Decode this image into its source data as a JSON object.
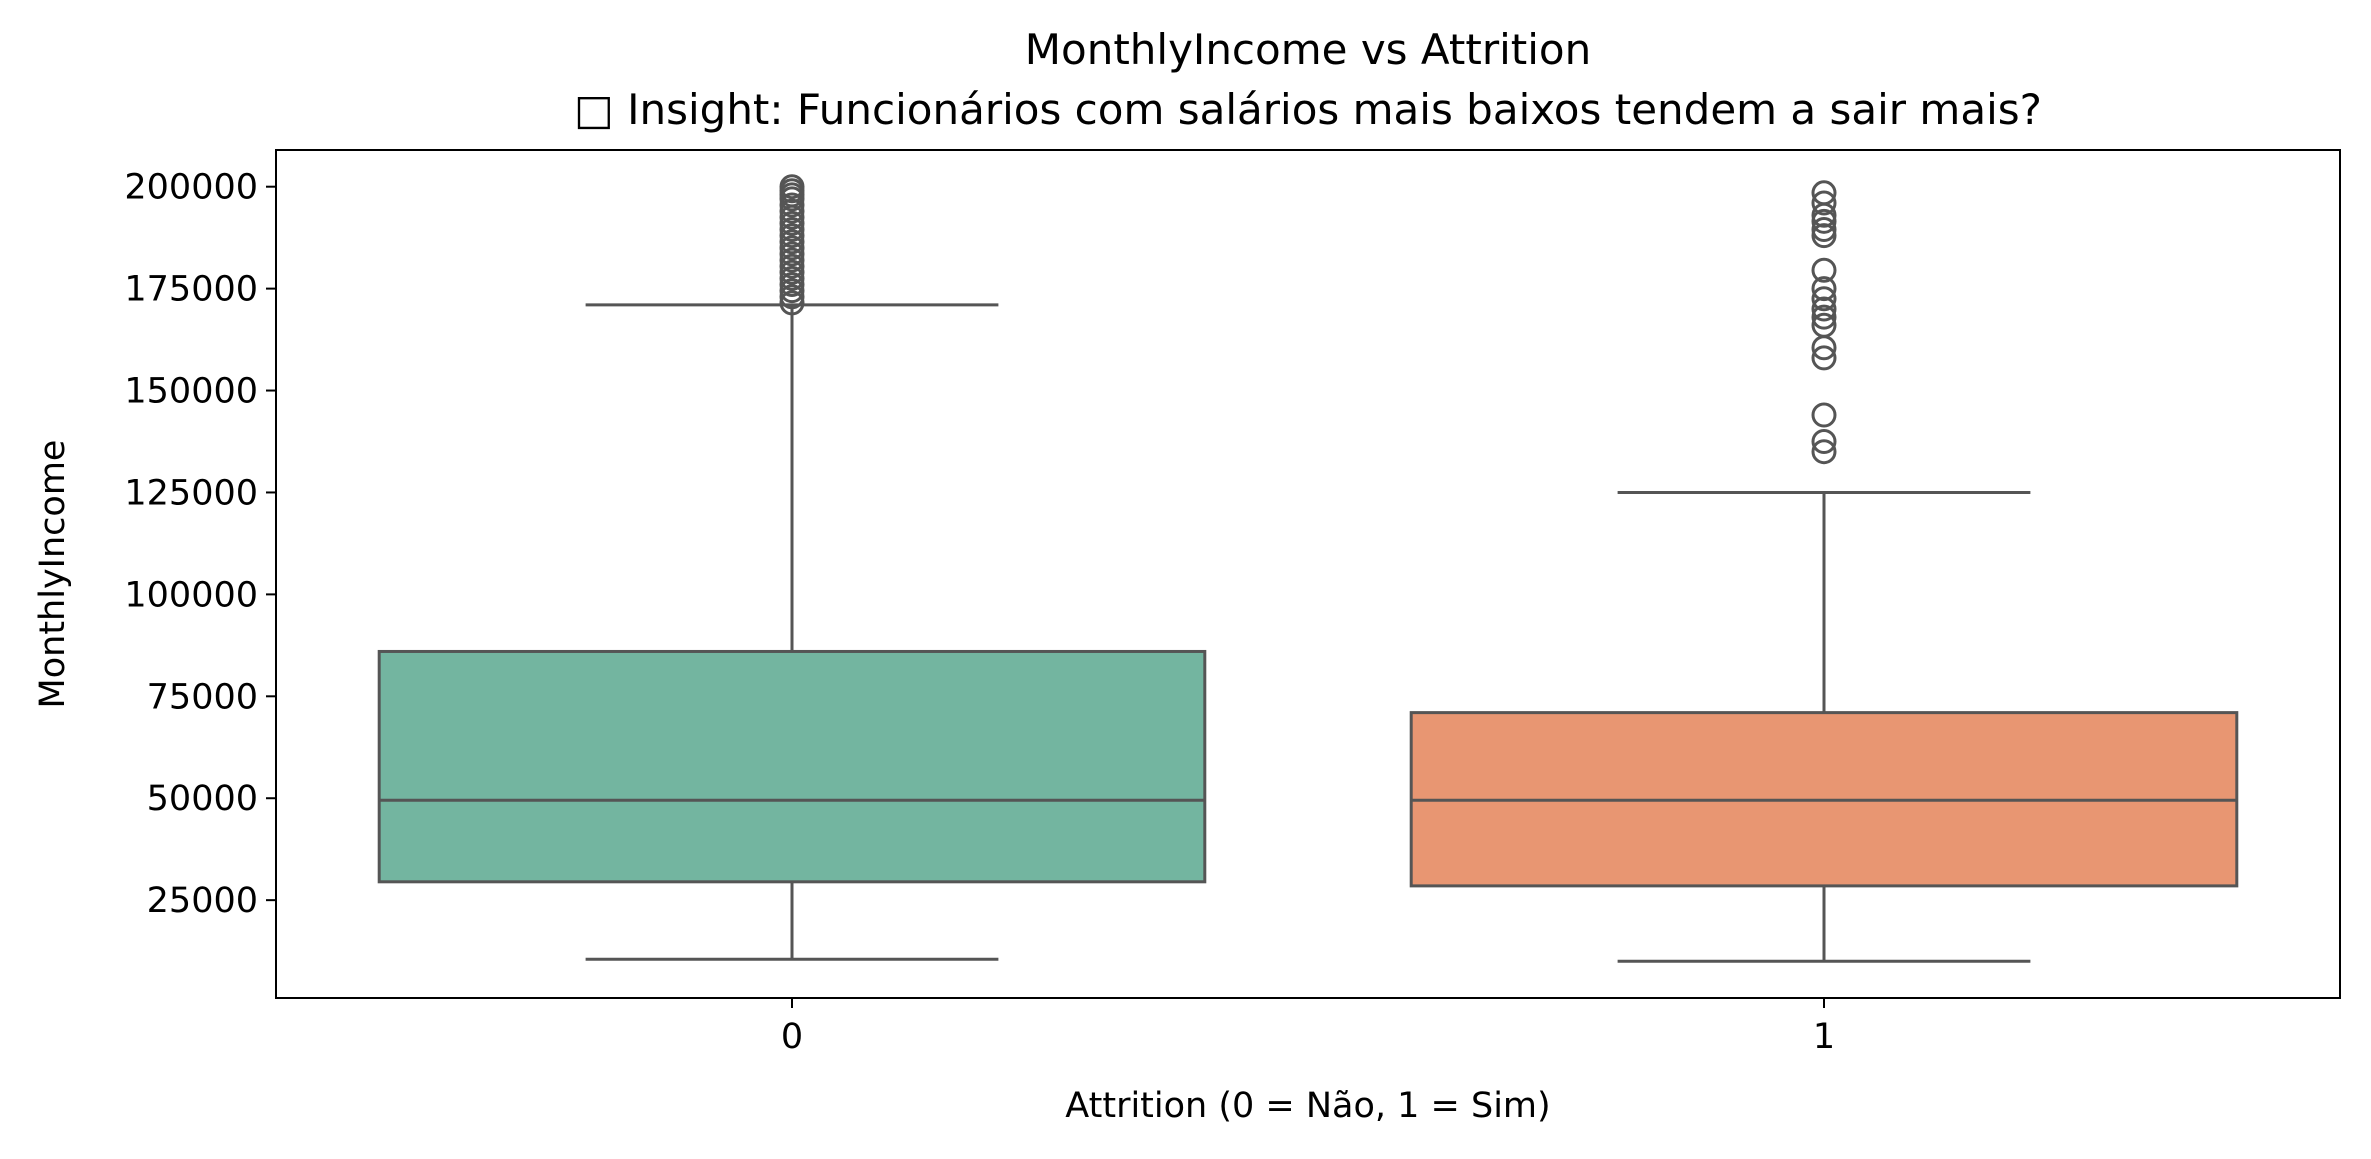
{
  "chart_data": {
    "type": "box",
    "title": "MonthlyIncome vs Attrition",
    "subtitle": "□ Insight: Funcionários com salários mais baixos tendem a sair mais?",
    "xlabel": "Attrition (0 = Não, 1 = Sim)",
    "ylabel": "MonthlyIncome",
    "categories": [
      "0",
      "1"
    ],
    "ylim": [
      1000,
      209000
    ],
    "yticks": [
      25000,
      50000,
      75000,
      100000,
      125000,
      150000,
      175000,
      200000
    ],
    "ytick_labels": [
      "25000",
      "50000",
      "75000",
      "100000",
      "125000",
      "150000",
      "175000",
      "200000"
    ],
    "grid": false,
    "boxes": [
      {
        "category": "0",
        "color": "#73b5a0",
        "whisker_low": 10500,
        "q1": 29500,
        "median": 49500,
        "q3": 86000,
        "whisker_high": 171000,
        "outliers": [
          171500,
          173000,
          174500,
          176000,
          177500,
          179000,
          180500,
          182000,
          183500,
          185000,
          186500,
          188000,
          189500,
          191000,
          192500,
          194000,
          195500,
          197000,
          198000,
          199000,
          200000
        ]
      },
      {
        "category": "1",
        "color": "#e89672",
        "whisker_low": 10000,
        "q1": 28500,
        "median": 49500,
        "q3": 71000,
        "whisker_high": 125000,
        "outliers": [
          135000,
          137500,
          144000,
          158000,
          160500,
          166000,
          168000,
          170000,
          172500,
          175000,
          179500,
          188000,
          189500,
          191500,
          193000,
          196000,
          198500
        ]
      }
    ]
  }
}
